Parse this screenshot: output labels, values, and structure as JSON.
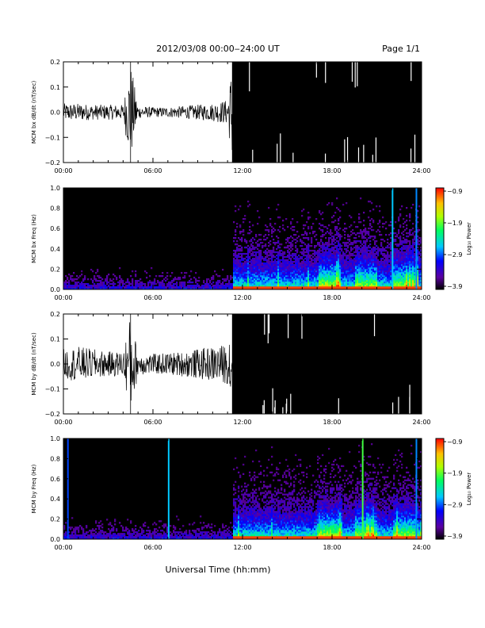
{
  "header": {
    "date_range": "2012/03/08  00:00‒24:00 UT",
    "page": "Page 1/1"
  },
  "footer": {
    "xlabel": "Universal Time (hh:mm)"
  },
  "colors": {
    "trace": "#000000",
    "background": "#ffffff",
    "spectrogram_bg": "#000000"
  },
  "chart_data": [
    {
      "type": "line",
      "panel": "bx-dbdt",
      "ylabel": "MCM bx dB/dt (nT/sec)",
      "xlim": [
        0,
        24
      ],
      "ylim": [
        -0.2,
        0.2
      ],
      "x_ticks": [
        "00:00",
        "06:00",
        "12:00",
        "18:00",
        "24:00"
      ],
      "y_ticks": [
        "−0.2",
        "−0.1",
        "0.0",
        "0.1",
        "0.2"
      ],
      "series": [
        {
          "x": [
            0,
            1,
            2,
            3,
            4,
            4.5,
            5,
            6,
            7,
            8,
            9,
            10,
            11,
            11.3,
            12,
            18,
            24
          ],
          "amplitude": [
            0.035,
            0.035,
            0.03,
            0.03,
            0.03,
            0.2,
            0.025,
            0.02,
            0.02,
            0.025,
            0.03,
            0.035,
            0.05,
            0.2,
            0.2,
            0.2,
            0.2
          ]
        }
      ],
      "note_gap": "saturated after 11:20"
    },
    {
      "type": "heatmap",
      "panel": "bx-freq",
      "ylabel": "MCM bx Freq (Hz)",
      "xlim": [
        0,
        24
      ],
      "ylim": [
        0,
        1.0
      ],
      "x_ticks": [
        "00:00",
        "06:00",
        "12:00",
        "18:00",
        "24:00"
      ],
      "y_ticks": [
        "0.0",
        "0.2",
        "0.4",
        "0.6",
        "0.8",
        "1.0"
      ],
      "colorbar": {
        "label": "Log₁₀ Power",
        "ticks": [
          "−0.9",
          "−1.9",
          "−2.9",
          "−3.9"
        ],
        "range": [
          -3.9,
          -0.9
        ]
      }
    },
    {
      "type": "line",
      "panel": "by-dbdt",
      "ylabel": "MCM by dB/dt (nT/sec)",
      "xlim": [
        0,
        24
      ],
      "ylim": [
        -0.2,
        0.2
      ],
      "x_ticks": [
        "00:00",
        "06:00",
        "12:00",
        "18:00",
        "24:00"
      ],
      "y_ticks": [
        "−0.2",
        "−0.1",
        "0.0",
        "0.1",
        "0.2"
      ],
      "series": [
        {
          "x": [
            0,
            1,
            2,
            3,
            4,
            4.5,
            5,
            6,
            7,
            8,
            9,
            10,
            11,
            11.3,
            12,
            18,
            24
          ],
          "amplitude": [
            0.06,
            0.07,
            0.06,
            0.05,
            0.05,
            0.2,
            0.045,
            0.04,
            0.045,
            0.05,
            0.06,
            0.07,
            0.08,
            0.2,
            0.2,
            0.2,
            0.2
          ]
        }
      ]
    },
    {
      "type": "heatmap",
      "panel": "by-freq",
      "ylabel": "MCM by Freq (Hz)",
      "xlim": [
        0,
        24
      ],
      "ylim": [
        0,
        1.0
      ],
      "x_ticks": [
        "00:00",
        "06:00",
        "12:00",
        "18:00",
        "24:00"
      ],
      "y_ticks": [
        "0.0",
        "0.2",
        "0.4",
        "0.6",
        "0.8",
        "1.0"
      ],
      "colorbar": {
        "label": "Log₁₀ Power",
        "ticks": [
          "−0.9",
          "−1.9",
          "−2.9",
          "−3.9"
        ],
        "range": [
          -3.9,
          -0.9
        ]
      }
    }
  ]
}
